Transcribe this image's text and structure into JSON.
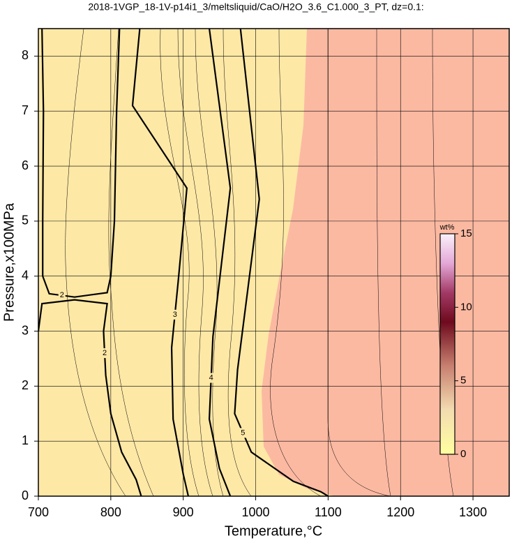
{
  "chart_data": {
    "type": "contour",
    "title": "2018-1VGP_18-1V-p14i1_3/meltsliquid/CaO/H2O_3.6_C1.000_3_PT, dz=0.1:",
    "x_label": "Temperature,°C",
    "y_label": "Pressure,x100MPa",
    "xlim": [
      700,
      1350
    ],
    "ylim": [
      0,
      8.5
    ],
    "xticks": [
      700,
      800,
      900,
      1000,
      1100,
      1200,
      1300
    ],
    "yticks": [
      0,
      1,
      2,
      3,
      4,
      5,
      6,
      7,
      8
    ],
    "grid": true,
    "line_color": "#000000",
    "contours": [
      {
        "level": 2,
        "x": [
          705,
          707,
          706,
          706,
          715,
          750,
          795,
          800,
          805,
          808,
          812
        ],
        "y": [
          8.5,
          7,
          5,
          4.0,
          3.68,
          3.62,
          3.7,
          4.0,
          5.0,
          7.0,
          8.5
        ]
      },
      {
        "level": 2,
        "x": [
          700,
          705,
          750,
          795,
          790,
          793,
          800,
          815,
          835,
          842
        ],
        "y": [
          3.0,
          3.5,
          3.57,
          3.5,
          3.0,
          2.2,
          1.5,
          0.8,
          0.3,
          0
        ]
      },
      {
        "level": 3,
        "x": [
          840,
          830,
          905,
          893,
          884,
          886,
          900,
          907
        ],
        "y": [
          8.5,
          7.1,
          5.6,
          3.9,
          2.7,
          1.4,
          0.4,
          0
        ]
      },
      {
        "level": 4,
        "x": [
          936,
          965,
          941,
          936,
          950,
          965
        ],
        "y": [
          8.5,
          5.6,
          2.9,
          1.4,
          0.5,
          0
        ]
      },
      {
        "level": 5,
        "x": [
          979,
          1005,
          975,
          971,
          994,
          1052,
          1090,
          1100
        ],
        "y": [
          8.5,
          5.4,
          2.3,
          1.5,
          0.8,
          0.27,
          0.08,
          0
        ]
      }
    ],
    "colorbar": {
      "label": "wt%",
      "lim": [
        0,
        15
      ],
      "ticks": [
        0,
        5,
        10,
        15
      ],
      "stops": [
        {
          "value": 0,
          "color": "#ffffa0"
        },
        {
          "value": 3,
          "color": "#f3dcb0"
        },
        {
          "value": 6,
          "color": "#c88070"
        },
        {
          "value": 9,
          "color": "#6e0a1e"
        },
        {
          "value": 11,
          "color": "#a33a66"
        },
        {
          "value": 13,
          "color": "#e4a8d8"
        },
        {
          "value": 15,
          "color": "#faf2fa"
        }
      ]
    }
  }
}
